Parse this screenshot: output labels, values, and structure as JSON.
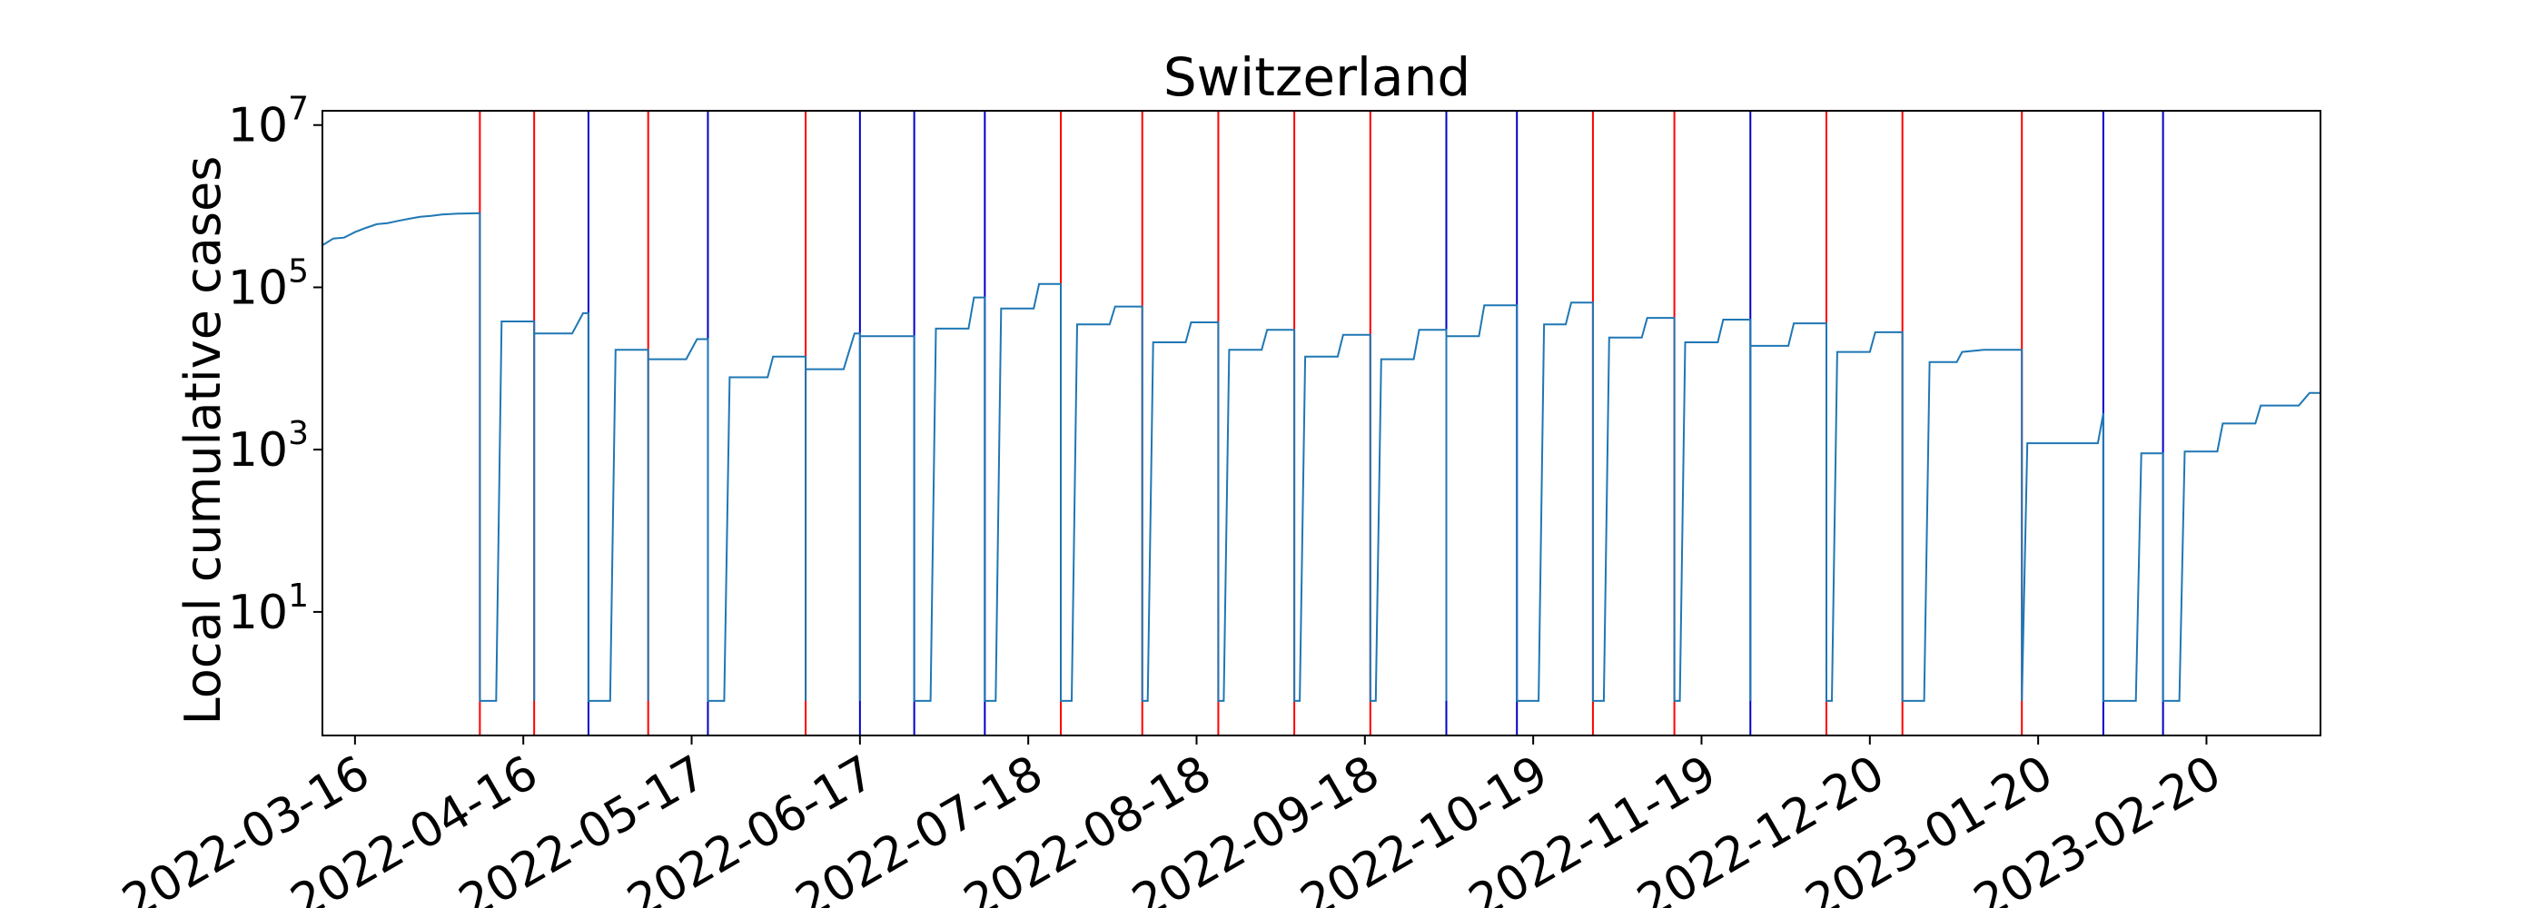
{
  "chart_data": {
    "type": "line",
    "title": "Switzerland",
    "xlabel": "",
    "ylabel": "Local cumulative cases",
    "y_scale": "log",
    "ylim": [
      0.3,
      15000000
    ],
    "xlim": [
      "2022-03-10",
      "2023-03-13"
    ],
    "x_ticks": [
      "2022-03-16",
      "2022-04-16",
      "2022-05-17",
      "2022-06-17",
      "2022-07-18",
      "2022-08-18",
      "2022-09-18",
      "2022-10-19",
      "2022-11-19",
      "2022-12-20",
      "2023-01-20",
      "2023-02-20"
    ],
    "y_ticks": [
      {
        "value": 10,
        "base": "10",
        "exp": "1"
      },
      {
        "value": 1000,
        "base": "10",
        "exp": "3"
      },
      {
        "value": 100000,
        "base": "10",
        "exp": "5"
      },
      {
        "value": 10000000,
        "base": "10",
        "exp": "7"
      }
    ],
    "grid": false,
    "legend": "none",
    "vertical_lines": [
      {
        "date": "2022-04-08",
        "color": "red"
      },
      {
        "date": "2022-04-18",
        "color": "red"
      },
      {
        "date": "2022-04-28",
        "color": "blue"
      },
      {
        "date": "2022-05-09",
        "color": "red"
      },
      {
        "date": "2022-05-20",
        "color": "blue"
      },
      {
        "date": "2022-06-07",
        "color": "red"
      },
      {
        "date": "2022-06-17",
        "color": "blue"
      },
      {
        "date": "2022-06-27",
        "color": "blue"
      },
      {
        "date": "2022-07-10",
        "color": "blue"
      },
      {
        "date": "2022-07-24",
        "color": "red"
      },
      {
        "date": "2022-08-08",
        "color": "red"
      },
      {
        "date": "2022-08-22",
        "color": "red"
      },
      {
        "date": "2022-09-05",
        "color": "red"
      },
      {
        "date": "2022-09-19",
        "color": "red"
      },
      {
        "date": "2022-10-03",
        "color": "blue"
      },
      {
        "date": "2022-10-16",
        "color": "blue"
      },
      {
        "date": "2022-10-30",
        "color": "red"
      },
      {
        "date": "2022-11-14",
        "color": "red"
      },
      {
        "date": "2022-11-28",
        "color": "blue"
      },
      {
        "date": "2022-12-12",
        "color": "red"
      },
      {
        "date": "2022-12-26",
        "color": "red"
      },
      {
        "date": "2023-01-17",
        "color": "red"
      },
      {
        "date": "2023-02-01",
        "color": "blue"
      },
      {
        "date": "2023-02-12",
        "color": "blue"
      }
    ],
    "series": [
      {
        "color": "#1f77b4",
        "points": [
          [
            "2022-03-10",
            330000
          ],
          [
            "2022-03-12",
            400000
          ],
          [
            "2022-03-14",
            410000
          ],
          [
            "2022-03-16",
            480000
          ],
          [
            "2022-03-18",
            540000
          ],
          [
            "2022-03-20",
            600000
          ],
          [
            "2022-03-22",
            620000
          ],
          [
            "2022-03-24",
            660000
          ],
          [
            "2022-03-26",
            700000
          ],
          [
            "2022-03-28",
            740000
          ],
          [
            "2022-03-30",
            760000
          ],
          [
            "2022-04-01",
            790000
          ],
          [
            "2022-04-04",
            810000
          ],
          [
            "2022-04-08",
            820000
          ],
          [
            "2022-04-08",
            0.8
          ],
          [
            "2022-04-11",
            0.8
          ],
          [
            "2022-04-12",
            38000
          ],
          [
            "2022-04-18",
            38000
          ],
          [
            "2022-04-18",
            0.8
          ],
          [
            "2022-04-18",
            27000
          ],
          [
            "2022-04-25",
            27000
          ],
          [
            "2022-04-27",
            48000
          ],
          [
            "2022-04-28",
            48000
          ],
          [
            "2022-04-28",
            0.8
          ],
          [
            "2022-05-02",
            0.8
          ],
          [
            "2022-05-03",
            17000
          ],
          [
            "2022-05-09",
            17000
          ],
          [
            "2022-05-09",
            0.8
          ],
          [
            "2022-05-09",
            13000
          ],
          [
            "2022-05-16",
            13000
          ],
          [
            "2022-05-18",
            23000
          ],
          [
            "2022-05-20",
            23000
          ],
          [
            "2022-05-20",
            0.8
          ],
          [
            "2022-05-23",
            0.8
          ],
          [
            "2022-05-24",
            7800
          ],
          [
            "2022-05-31",
            7800
          ],
          [
            "2022-06-01",
            14000
          ],
          [
            "2022-06-07",
            14000
          ],
          [
            "2022-06-07",
            0.8
          ],
          [
            "2022-06-07",
            9800
          ],
          [
            "2022-06-14",
            9800
          ],
          [
            "2022-06-16",
            27000
          ],
          [
            "2022-06-17",
            27000
          ],
          [
            "2022-06-17",
            0.8
          ],
          [
            "2022-06-17",
            25000
          ],
          [
            "2022-06-27",
            25000
          ],
          [
            "2022-06-27",
            0.8
          ],
          [
            "2022-06-30",
            0.8
          ],
          [
            "2022-07-01",
            31000
          ],
          [
            "2022-07-07",
            31000
          ],
          [
            "2022-07-08",
            75000
          ],
          [
            "2022-07-10",
            75000
          ],
          [
            "2022-07-10",
            0.8
          ],
          [
            "2022-07-12",
            0.8
          ],
          [
            "2022-07-13",
            55000
          ],
          [
            "2022-07-19",
            55000
          ],
          [
            "2022-07-20",
            110000
          ],
          [
            "2022-07-24",
            110000
          ],
          [
            "2022-07-24",
            0.8
          ],
          [
            "2022-07-26",
            0.8
          ],
          [
            "2022-07-27",
            35000
          ],
          [
            "2022-08-02",
            35000
          ],
          [
            "2022-08-03",
            58000
          ],
          [
            "2022-08-08",
            58000
          ],
          [
            "2022-08-08",
            0.8
          ],
          [
            "2022-08-09",
            0.8
          ],
          [
            "2022-08-10",
            21000
          ],
          [
            "2022-08-16",
            21000
          ],
          [
            "2022-08-17",
            37000
          ],
          [
            "2022-08-22",
            37000
          ],
          [
            "2022-08-22",
            0.8
          ],
          [
            "2022-08-23",
            0.8
          ],
          [
            "2022-08-24",
            17000
          ],
          [
            "2022-08-30",
            17000
          ],
          [
            "2022-08-31",
            30000
          ],
          [
            "2022-09-05",
            30000
          ],
          [
            "2022-09-05",
            0.8
          ],
          [
            "2022-09-06",
            0.8
          ],
          [
            "2022-09-07",
            14000
          ],
          [
            "2022-09-13",
            14000
          ],
          [
            "2022-09-14",
            26000
          ],
          [
            "2022-09-19",
            26000
          ],
          [
            "2022-09-19",
            0.8
          ],
          [
            "2022-09-20",
            0.8
          ],
          [
            "2022-09-21",
            13000
          ],
          [
            "2022-09-27",
            13000
          ],
          [
            "2022-09-28",
            30000
          ],
          [
            "2022-10-03",
            30000
          ],
          [
            "2022-10-03",
            0.8
          ],
          [
            "2022-10-03",
            25000
          ],
          [
            "2022-10-09",
            25000
          ],
          [
            "2022-10-10",
            60000
          ],
          [
            "2022-10-16",
            60000
          ],
          [
            "2022-10-16",
            0.8
          ],
          [
            "2022-10-20",
            0.8
          ],
          [
            "2022-10-21",
            35000
          ],
          [
            "2022-10-25",
            35000
          ],
          [
            "2022-10-26",
            65000
          ],
          [
            "2022-10-30",
            65000
          ],
          [
            "2022-10-30",
            0.8
          ],
          [
            "2022-11-01",
            0.8
          ],
          [
            "2022-11-02",
            24000
          ],
          [
            "2022-11-08",
            24000
          ],
          [
            "2022-11-09",
            42000
          ],
          [
            "2022-11-14",
            42000
          ],
          [
            "2022-11-14",
            0.8
          ],
          [
            "2022-11-15",
            0.8
          ],
          [
            "2022-11-16",
            21000
          ],
          [
            "2022-11-22",
            21000
          ],
          [
            "2022-11-23",
            40000
          ],
          [
            "2022-11-28",
            40000
          ],
          [
            "2022-11-28",
            0.8
          ],
          [
            "2022-11-28",
            19000
          ],
          [
            "2022-12-05",
            19000
          ],
          [
            "2022-12-06",
            36000
          ],
          [
            "2022-12-12",
            36000
          ],
          [
            "2022-12-12",
            0.8
          ],
          [
            "2022-12-13",
            0.8
          ],
          [
            "2022-12-14",
            16000
          ],
          [
            "2022-12-20",
            16000
          ],
          [
            "2022-12-21",
            28000
          ],
          [
            "2022-12-26",
            28000
          ],
          [
            "2022-12-26",
            0.8
          ],
          [
            "2022-12-30",
            0.8
          ],
          [
            "2022-12-31",
            12000
          ],
          [
            "2023-01-05",
            12000
          ],
          [
            "2023-01-06",
            16000
          ],
          [
            "2023-01-10",
            17000
          ],
          [
            "2023-01-17",
            17000
          ],
          [
            "2023-01-17",
            0.8
          ],
          [
            "2023-01-18",
            1200
          ],
          [
            "2023-01-31",
            1200
          ],
          [
            "2023-02-01",
            2800
          ],
          [
            "2023-02-01",
            0.8
          ],
          [
            "2023-02-07",
            0.8
          ],
          [
            "2023-02-08",
            900
          ],
          [
            "2023-02-12",
            900
          ],
          [
            "2023-02-12",
            0.8
          ],
          [
            "2023-02-15",
            0.8
          ],
          [
            "2023-02-16",
            950
          ],
          [
            "2023-02-22",
            950
          ],
          [
            "2023-02-23",
            2100
          ],
          [
            "2023-03-01",
            2100
          ],
          [
            "2023-03-02",
            3500
          ],
          [
            "2023-03-09",
            3500
          ],
          [
            "2023-03-11",
            5000
          ],
          [
            "2023-03-13",
            5000
          ]
        ]
      }
    ]
  }
}
